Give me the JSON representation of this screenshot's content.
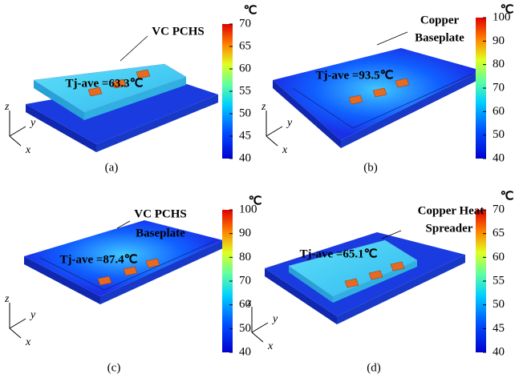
{
  "axis_labels": {
    "z": "z",
    "y": "y",
    "x": "x"
  },
  "panels": [
    {
      "label": "(a)",
      "annotations": [
        "VC PCHS"
      ],
      "tj": "Tj-ave =63.3℃",
      "unit": "℃",
      "colorbar": {
        "ticks": [
          70,
          65,
          60,
          55,
          50,
          45,
          40
        ]
      }
    },
    {
      "label": "(b)",
      "annotations": [
        "Copper",
        "Baseplate"
      ],
      "tj": "Tj-ave =93.5℃",
      "unit": "℃",
      "colorbar": {
        "ticks": [
          100,
          90,
          80,
          70,
          60,
          50,
          40
        ]
      }
    },
    {
      "label": "(c)",
      "annotations": [
        "VC PCHS",
        "Baseplate"
      ],
      "tj": "Tj-ave =87.4℃",
      "unit": "℃",
      "colorbar": {
        "ticks": [
          100,
          90,
          80,
          70,
          60,
          50,
          40
        ]
      }
    },
    {
      "label": "(d)",
      "annotations": [
        "Copper Heat",
        "Spreader"
      ],
      "tj": "Tj-ave =65.1℃",
      "unit": "℃",
      "colorbar": {
        "ticks": [
          70,
          65,
          60,
          55,
          50,
          45,
          40
        ]
      }
    }
  ]
}
